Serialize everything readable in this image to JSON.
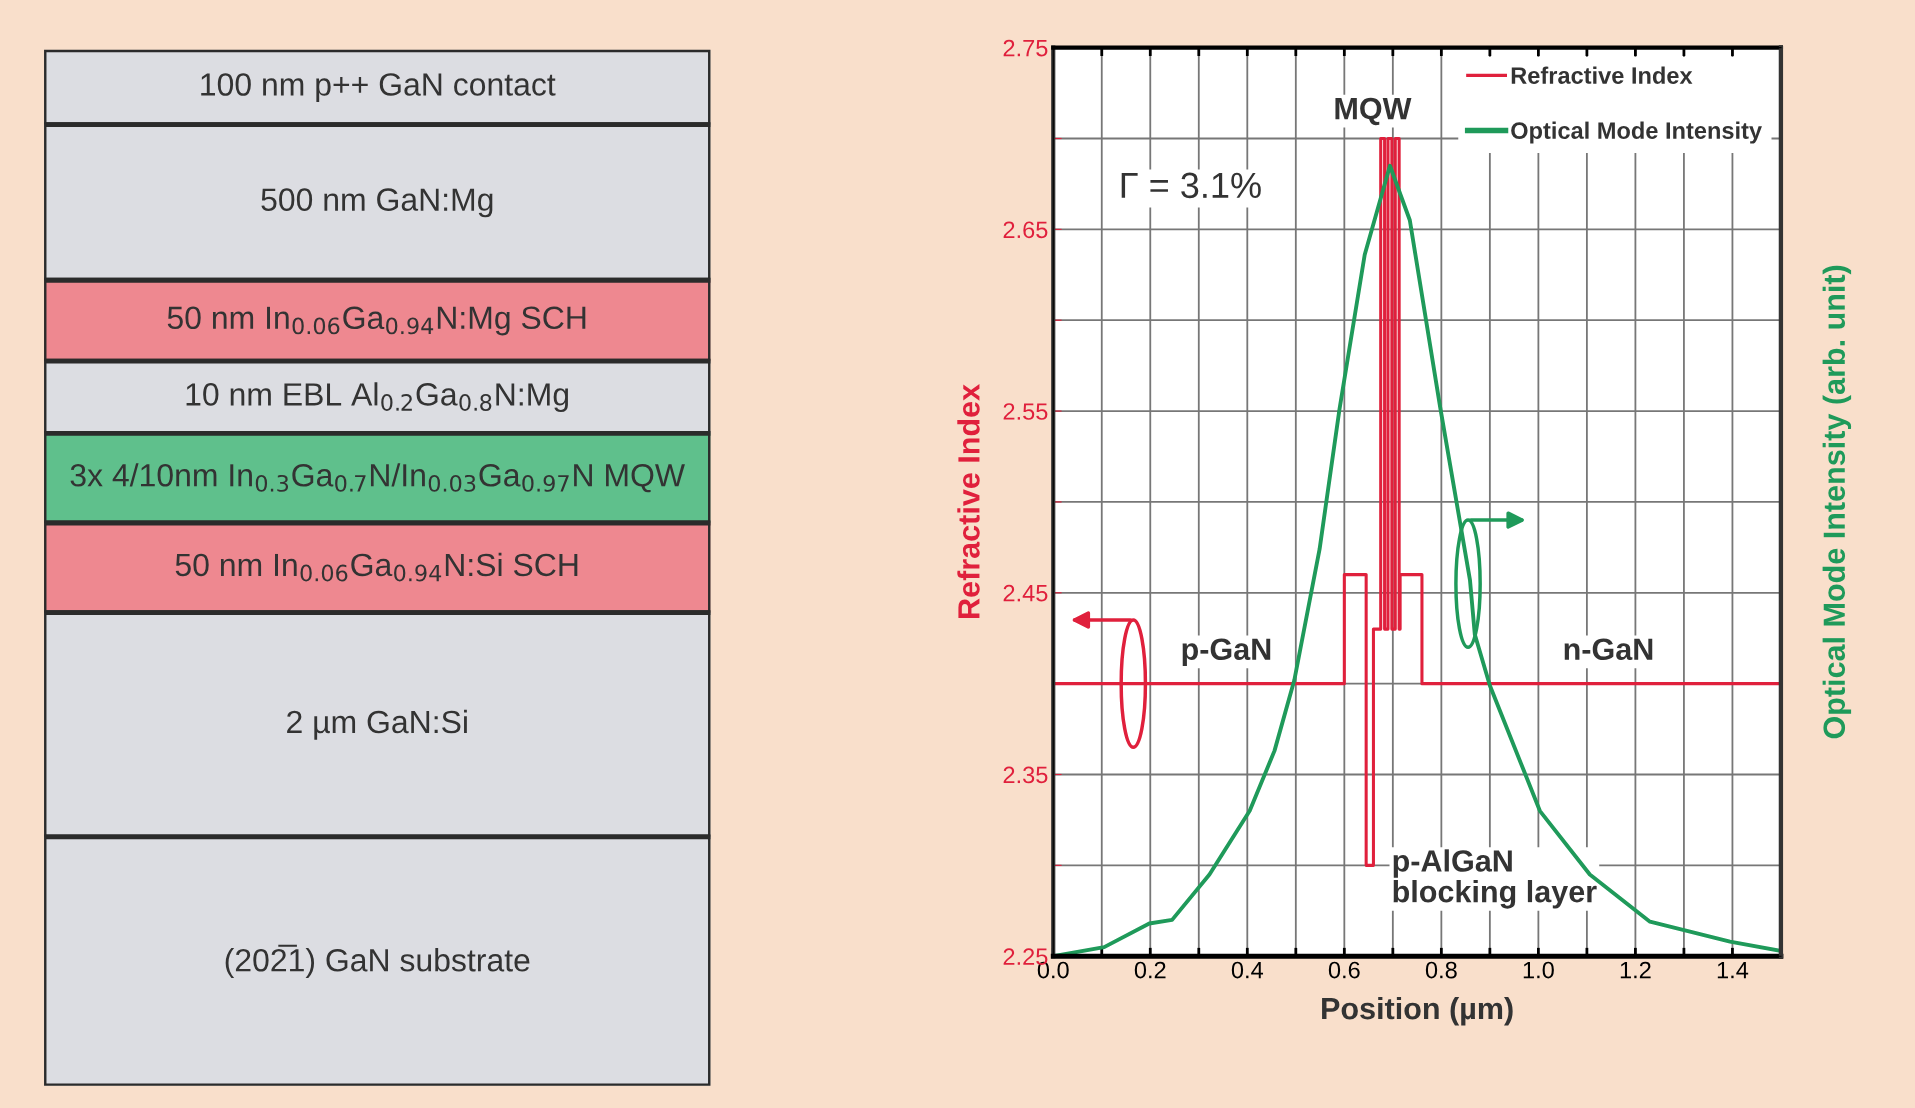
{
  "chart_data": [
    {
      "type": "other",
      "categories": [
        "100 nm p++ GaN contact",
        "500 nm GaN:Mg",
        "50 nm In$_{0.06}$Ga$_{0.94}$N:Mg SCH",
        "10 nm EBL Al$_{0.2}$Ga$_{0.8}$N:Mg",
        "3x 4/10nm In$_{0.3}$Ga$_{0.7}$N/In$_{0.03}$Ga$_{0.97}$N MQW",
        "50 nm In$_{0.06}$Ga$_{0.94}$N:Si SCH",
        "2 µm GaN:Si",
        "(202̅1) GaN substrate"
      ],
      "colors": [
        "#dcdde2",
        "#dcdde2",
        "#ee8890",
        "#dcdde2",
        "#5fc08c",
        "#ee8890",
        "#dcdde2",
        "#dcdde2"
      ]
    },
    {
      "type": "line",
      "xlabel": "Position (µm)",
      "ylabel": "Refractive Index",
      "y2label": "Optical Mode Intensity (arb. unit)",
      "xlim": [
        0,
        1.5
      ],
      "ylim": [
        2.25,
        2.75
      ],
      "xticks": [
        {
          "value": 0,
          "label": "0.0"
        },
        {
          "value": 0.1,
          "label": null
        },
        {
          "value": 0.2,
          "label": "0.2"
        },
        {
          "value": 0.3,
          "label": null
        },
        {
          "value": 0.4,
          "label": "0.4"
        },
        {
          "value": 0.5,
          "label": null
        },
        {
          "value": 0.6,
          "label": "0.6"
        },
        {
          "value": 0.7,
          "label": null
        },
        {
          "value": 0.8,
          "label": "0.8"
        },
        {
          "value": 0.9,
          "label": null
        },
        {
          "value": 1.0,
          "label": "1.0"
        },
        {
          "value": 1.1,
          "label": null
        },
        {
          "value": 1.2,
          "label": "1.2"
        },
        {
          "value": 1.3,
          "label": null
        },
        {
          "value": 1.4,
          "label": "1.4"
        }
      ],
      "yticks": [
        2.25,
        {
          "value": 2.3,
          "label": null
        },
        2.35,
        {
          "value": 2.4,
          "label": null
        },
        2.45,
        {
          "value": 2.5,
          "label": null
        },
        2.55,
        {
          "value": 2.6,
          "label": null
        },
        2.65,
        {
          "value": 2.7,
          "label": null
        },
        2.75
      ],
      "grid": true,
      "legend": "top right",
      "series": [
        {
          "name": "Refractive Index",
          "type": "step",
          "color": "#e0203c",
          "x": [
            0,
            0.6,
            0.645,
            0.66,
            0.675,
            0.683,
            0.69,
            0.698,
            0.705,
            0.713,
            0.715,
            0.76,
            1.5
          ],
          "values": [
            2.4,
            2.46,
            2.3,
            2.43,
            2.7,
            2.43,
            2.7,
            2.43,
            2.7,
            2.43,
            2.46,
            2.4,
            2.4
          ]
        },
        {
          "name": "Optical Mode Intensity",
          "type": "line",
          "color": "#1f9a5a",
          "x": [
            0,
            0.105,
            0.198,
            0.245,
            0.322,
            0.405,
            0.456,
            0.497,
            0.549,
            0.59,
            0.642,
            0.694,
            0.735,
            0.797,
            0.859,
            0.869,
            0.9,
            1.003,
            1.106,
            1.23,
            1.395,
            1.498
          ],
          "values": [
            2.25,
            2.255,
            2.268,
            2.27,
            2.295,
            2.33,
            2.363,
            2.402,
            2.474,
            2.551,
            2.636,
            2.685,
            2.655,
            2.553,
            2.457,
            2.427,
            2.399,
            2.33,
            2.295,
            2.269,
            2.258,
            2.253
          ]
        }
      ],
      "annotations": [
        "MQW",
        "Γ = 3.1%",
        "p-GaN",
        "n-GaN",
        "p-AlGaN\nblocking layer"
      ]
    }
  ]
}
